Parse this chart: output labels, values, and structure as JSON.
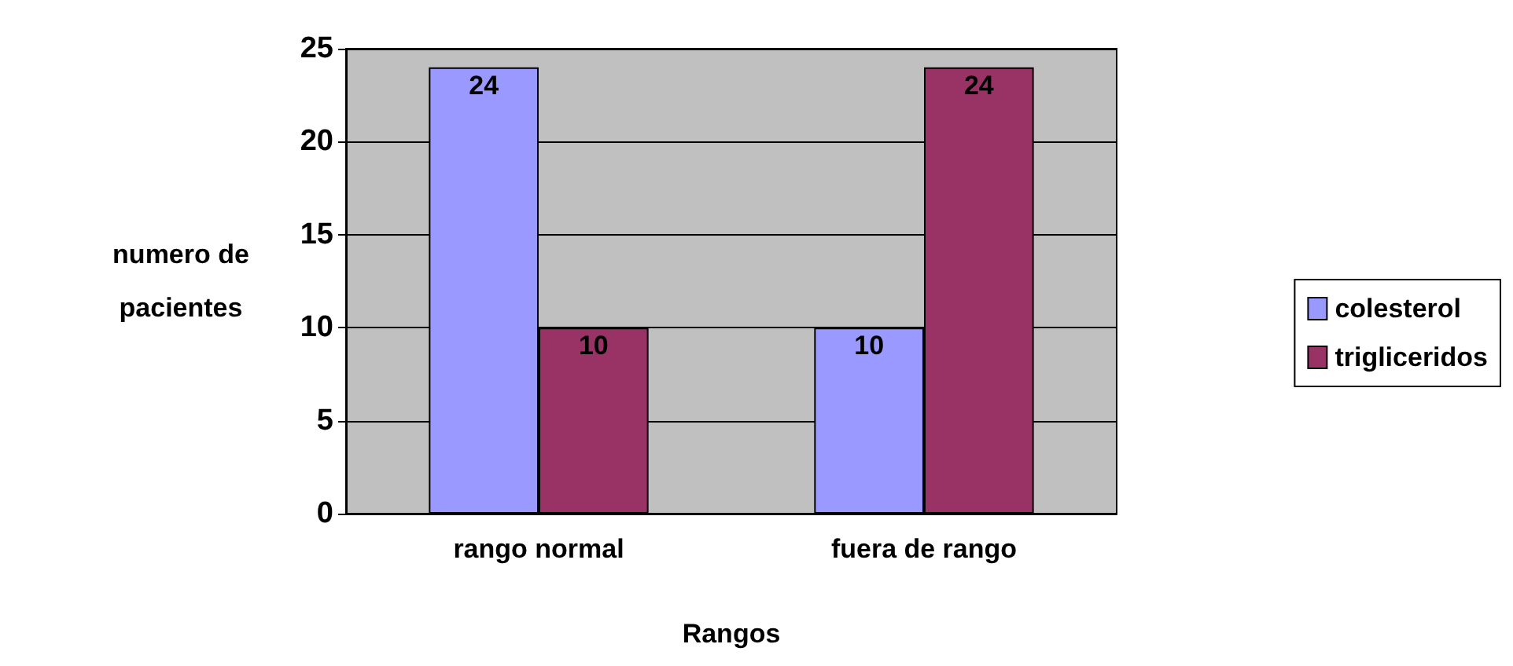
{
  "chart_data": {
    "type": "bar",
    "xlabel": "Rangos",
    "ylabel": "numero de pacientes",
    "categories": [
      "rango normal",
      "fuera de rango"
    ],
    "series": [
      {
        "name": "colesterol",
        "color": "#9999ff",
        "values": [
          24,
          10
        ]
      },
      {
        "name": "trigliceridos",
        "color": "#993366",
        "values": [
          10,
          24
        ]
      }
    ],
    "ylim": [
      0,
      25
    ],
    "yticks": [
      0,
      5,
      10,
      15,
      20,
      25
    ],
    "grid": "y",
    "legend": "right",
    "data_labels": true
  }
}
